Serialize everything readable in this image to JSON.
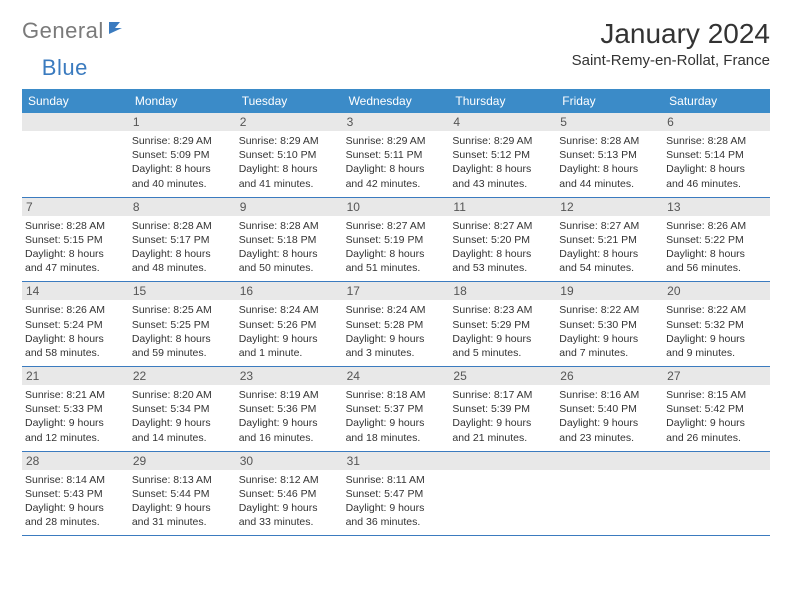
{
  "brand": {
    "text1": "General",
    "text2": "Blue",
    "color1": "#7a7a7a",
    "color2": "#3b7bbf"
  },
  "title": "January 2024",
  "location": "Saint-Remy-en-Rollat, France",
  "header_bg": "#3b8bc8",
  "daynum_bg": "#e8e8e8",
  "rule_color": "#3b7bbf",
  "dow": [
    "Sunday",
    "Monday",
    "Tuesday",
    "Wednesday",
    "Thursday",
    "Friday",
    "Saturday"
  ],
  "weeks": [
    [
      null,
      {
        "n": "1",
        "sr": "Sunrise: 8:29 AM",
        "ss": "Sunset: 5:09 PM",
        "d1": "Daylight: 8 hours",
        "d2": "and 40 minutes."
      },
      {
        "n": "2",
        "sr": "Sunrise: 8:29 AM",
        "ss": "Sunset: 5:10 PM",
        "d1": "Daylight: 8 hours",
        "d2": "and 41 minutes."
      },
      {
        "n": "3",
        "sr": "Sunrise: 8:29 AM",
        "ss": "Sunset: 5:11 PM",
        "d1": "Daylight: 8 hours",
        "d2": "and 42 minutes."
      },
      {
        "n": "4",
        "sr": "Sunrise: 8:29 AM",
        "ss": "Sunset: 5:12 PM",
        "d1": "Daylight: 8 hours",
        "d2": "and 43 minutes."
      },
      {
        "n": "5",
        "sr": "Sunrise: 8:28 AM",
        "ss": "Sunset: 5:13 PM",
        "d1": "Daylight: 8 hours",
        "d2": "and 44 minutes."
      },
      {
        "n": "6",
        "sr": "Sunrise: 8:28 AM",
        "ss": "Sunset: 5:14 PM",
        "d1": "Daylight: 8 hours",
        "d2": "and 46 minutes."
      }
    ],
    [
      {
        "n": "7",
        "sr": "Sunrise: 8:28 AM",
        "ss": "Sunset: 5:15 PM",
        "d1": "Daylight: 8 hours",
        "d2": "and 47 minutes."
      },
      {
        "n": "8",
        "sr": "Sunrise: 8:28 AM",
        "ss": "Sunset: 5:17 PM",
        "d1": "Daylight: 8 hours",
        "d2": "and 48 minutes."
      },
      {
        "n": "9",
        "sr": "Sunrise: 8:28 AM",
        "ss": "Sunset: 5:18 PM",
        "d1": "Daylight: 8 hours",
        "d2": "and 50 minutes."
      },
      {
        "n": "10",
        "sr": "Sunrise: 8:27 AM",
        "ss": "Sunset: 5:19 PM",
        "d1": "Daylight: 8 hours",
        "d2": "and 51 minutes."
      },
      {
        "n": "11",
        "sr": "Sunrise: 8:27 AM",
        "ss": "Sunset: 5:20 PM",
        "d1": "Daylight: 8 hours",
        "d2": "and 53 minutes."
      },
      {
        "n": "12",
        "sr": "Sunrise: 8:27 AM",
        "ss": "Sunset: 5:21 PM",
        "d1": "Daylight: 8 hours",
        "d2": "and 54 minutes."
      },
      {
        "n": "13",
        "sr": "Sunrise: 8:26 AM",
        "ss": "Sunset: 5:22 PM",
        "d1": "Daylight: 8 hours",
        "d2": "and 56 minutes."
      }
    ],
    [
      {
        "n": "14",
        "sr": "Sunrise: 8:26 AM",
        "ss": "Sunset: 5:24 PM",
        "d1": "Daylight: 8 hours",
        "d2": "and 58 minutes."
      },
      {
        "n": "15",
        "sr": "Sunrise: 8:25 AM",
        "ss": "Sunset: 5:25 PM",
        "d1": "Daylight: 8 hours",
        "d2": "and 59 minutes."
      },
      {
        "n": "16",
        "sr": "Sunrise: 8:24 AM",
        "ss": "Sunset: 5:26 PM",
        "d1": "Daylight: 9 hours",
        "d2": "and 1 minute."
      },
      {
        "n": "17",
        "sr": "Sunrise: 8:24 AM",
        "ss": "Sunset: 5:28 PM",
        "d1": "Daylight: 9 hours",
        "d2": "and 3 minutes."
      },
      {
        "n": "18",
        "sr": "Sunrise: 8:23 AM",
        "ss": "Sunset: 5:29 PM",
        "d1": "Daylight: 9 hours",
        "d2": "and 5 minutes."
      },
      {
        "n": "19",
        "sr": "Sunrise: 8:22 AM",
        "ss": "Sunset: 5:30 PM",
        "d1": "Daylight: 9 hours",
        "d2": "and 7 minutes."
      },
      {
        "n": "20",
        "sr": "Sunrise: 8:22 AM",
        "ss": "Sunset: 5:32 PM",
        "d1": "Daylight: 9 hours",
        "d2": "and 9 minutes."
      }
    ],
    [
      {
        "n": "21",
        "sr": "Sunrise: 8:21 AM",
        "ss": "Sunset: 5:33 PM",
        "d1": "Daylight: 9 hours",
        "d2": "and 12 minutes."
      },
      {
        "n": "22",
        "sr": "Sunrise: 8:20 AM",
        "ss": "Sunset: 5:34 PM",
        "d1": "Daylight: 9 hours",
        "d2": "and 14 minutes."
      },
      {
        "n": "23",
        "sr": "Sunrise: 8:19 AM",
        "ss": "Sunset: 5:36 PM",
        "d1": "Daylight: 9 hours",
        "d2": "and 16 minutes."
      },
      {
        "n": "24",
        "sr": "Sunrise: 8:18 AM",
        "ss": "Sunset: 5:37 PM",
        "d1": "Daylight: 9 hours",
        "d2": "and 18 minutes."
      },
      {
        "n": "25",
        "sr": "Sunrise: 8:17 AM",
        "ss": "Sunset: 5:39 PM",
        "d1": "Daylight: 9 hours",
        "d2": "and 21 minutes."
      },
      {
        "n": "26",
        "sr": "Sunrise: 8:16 AM",
        "ss": "Sunset: 5:40 PM",
        "d1": "Daylight: 9 hours",
        "d2": "and 23 minutes."
      },
      {
        "n": "27",
        "sr": "Sunrise: 8:15 AM",
        "ss": "Sunset: 5:42 PM",
        "d1": "Daylight: 9 hours",
        "d2": "and 26 minutes."
      }
    ],
    [
      {
        "n": "28",
        "sr": "Sunrise: 8:14 AM",
        "ss": "Sunset: 5:43 PM",
        "d1": "Daylight: 9 hours",
        "d2": "and 28 minutes."
      },
      {
        "n": "29",
        "sr": "Sunrise: 8:13 AM",
        "ss": "Sunset: 5:44 PM",
        "d1": "Daylight: 9 hours",
        "d2": "and 31 minutes."
      },
      {
        "n": "30",
        "sr": "Sunrise: 8:12 AM",
        "ss": "Sunset: 5:46 PM",
        "d1": "Daylight: 9 hours",
        "d2": "and 33 minutes."
      },
      {
        "n": "31",
        "sr": "Sunrise: 8:11 AM",
        "ss": "Sunset: 5:47 PM",
        "d1": "Daylight: 9 hours",
        "d2": "and 36 minutes."
      },
      null,
      null,
      null
    ]
  ]
}
